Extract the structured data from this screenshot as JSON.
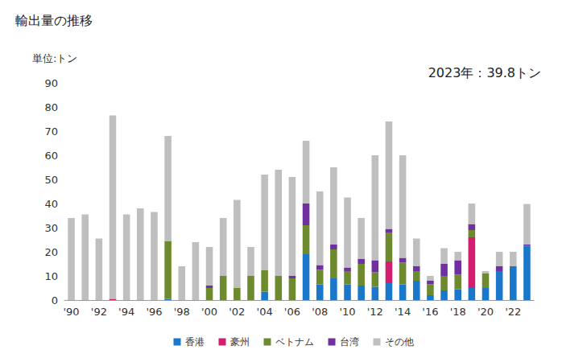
{
  "chart_data": {
    "type": "bar",
    "title": "輸出量の推移",
    "ylabel": "単位:トン",
    "annotations": [
      "2023年：39.8トン"
    ],
    "stacked": true,
    "grid": false,
    "legend": "bottom",
    "categories": [
      "'90",
      null,
      "'92",
      null,
      "'94",
      null,
      "'96",
      null,
      "'98",
      null,
      "'00",
      null,
      "'02",
      null,
      "'04",
      null,
      "'06",
      null,
      "'08",
      null,
      "'10",
      null,
      "'12",
      null,
      "'14",
      null,
      "'16",
      null,
      "'18",
      null,
      "'20",
      null,
      "'22",
      null
    ],
    "ylim": [
      0,
      90
    ],
    "yticks": [
      0,
      10,
      20,
      30,
      40,
      50,
      60,
      70,
      80,
      90
    ],
    "series": [
      {
        "name": "香港",
        "color": "#1a77c9",
        "values": [
          0,
          0,
          0,
          0,
          0,
          0,
          0,
          0.5,
          0,
          0,
          0,
          0,
          0,
          0,
          3.5,
          0,
          0,
          19,
          6.5,
          9,
          6.5,
          6,
          5.5,
          7,
          6.5,
          8,
          2,
          4,
          4.5,
          5,
          5,
          12,
          14,
          22.5
        ]
      },
      {
        "name": "豪州",
        "color": "#d31d6e",
        "values": [
          0,
          0,
          0,
          0.5,
          0,
          0,
          0,
          0,
          0,
          0,
          0,
          0,
          0,
          0,
          0,
          0,
          0,
          0,
          0,
          0,
          0,
          0,
          0,
          9,
          0,
          0,
          0,
          0,
          0,
          21,
          0,
          0,
          0,
          0
        ]
      },
      {
        "name": "ベトナム",
        "color": "#6d8b2e",
        "values": [
          0,
          0,
          0,
          0,
          0,
          0,
          0,
          24,
          0,
          0,
          5,
          10,
          5,
          10,
          9,
          10,
          9,
          12,
          6,
          12,
          5.5,
          9,
          6,
          12,
          9,
          4,
          4.5,
          6,
          6,
          3,
          6,
          0,
          0,
          0
        ]
      },
      {
        "name": "台湾",
        "color": "#7030a0",
        "values": [
          0,
          0,
          0,
          0,
          0,
          0,
          0,
          0,
          0,
          0,
          1,
          0,
          0,
          0,
          0,
          0,
          1,
          9,
          2,
          2,
          1.5,
          2,
          5,
          1.5,
          2,
          2,
          1.5,
          5,
          6,
          2.5,
          0,
          2,
          0,
          0.5
        ]
      },
      {
        "name": "その他",
        "color": "#bfbfbf",
        "values": [
          34,
          35.5,
          25.5,
          76,
          35.5,
          38,
          36.5,
          43.5,
          14,
          24,
          16,
          24,
          36.5,
          12,
          39.5,
          44,
          41,
          26,
          30.5,
          32,
          29,
          17,
          43.5,
          44.5,
          42.5,
          11.5,
          2,
          6.5,
          3.5,
          8.5,
          1,
          6,
          6,
          16.8
        ]
      }
    ]
  }
}
